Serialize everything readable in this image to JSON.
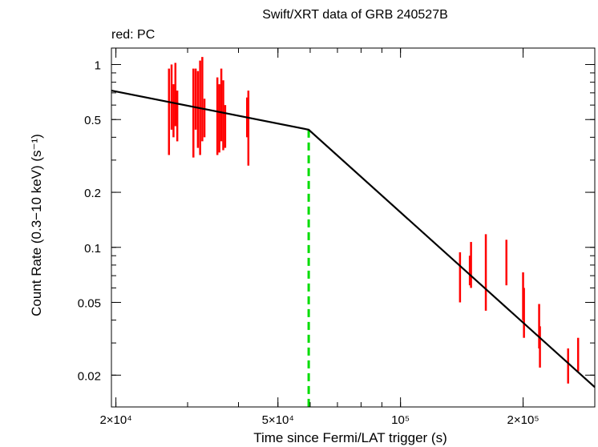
{
  "chart_data": {
    "type": "scatter",
    "title": "Swift/XRT data of GRB 240527B",
    "subtitle": "red: PC",
    "xlabel": "Time since Fermi/LAT trigger (s)",
    "ylabel": "Count Rate (0.3−10 keV) (s⁻¹)",
    "xscale": "log",
    "yscale": "log",
    "xlim": [
      19500,
      300000
    ],
    "ylim": [
      0.0134,
      1.23
    ],
    "grid": false,
    "x_ticks": [
      {
        "value": 20000,
        "label": "2×10⁴"
      },
      {
        "value": 50000,
        "label": "5×10⁴"
      },
      {
        "value": 100000,
        "label": "10⁵"
      },
      {
        "value": 200000,
        "label": "2×10⁵"
      }
    ],
    "y_ticks": [
      {
        "value": 1,
        "label": "1"
      },
      {
        "value": 0.5,
        "label": "0.5"
      },
      {
        "value": 0.2,
        "label": "0.2"
      },
      {
        "value": 0.1,
        "label": "0.1"
      },
      {
        "value": 0.05,
        "label": "0.05"
      },
      {
        "value": 0.02,
        "label": "0.02"
      }
    ],
    "series": [
      {
        "name": "PC",
        "color": "#ff0000",
        "points": [
          {
            "x": 27000,
            "y": 0.6,
            "ylo": 0.32,
            "yhi": 0.95
          },
          {
            "x": 27400,
            "y": 0.7,
            "ylo": 0.44,
            "yhi": 1.0
          },
          {
            "x": 27700,
            "y": 0.55,
            "ylo": 0.4,
            "yhi": 0.78
          },
          {
            "x": 28000,
            "y": 0.72,
            "ylo": 0.46,
            "yhi": 1.02
          },
          {
            "x": 28300,
            "y": 0.55,
            "ylo": 0.38,
            "yhi": 0.72
          },
          {
            "x": 31000,
            "y": 0.6,
            "ylo": 0.31,
            "yhi": 0.95
          },
          {
            "x": 31400,
            "y": 0.62,
            "ylo": 0.44,
            "yhi": 0.95
          },
          {
            "x": 31800,
            "y": 0.5,
            "ylo": 0.35,
            "yhi": 0.92
          },
          {
            "x": 32200,
            "y": 0.55,
            "ylo": 0.32,
            "yhi": 1.05
          },
          {
            "x": 32600,
            "y": 0.6,
            "ylo": 0.38,
            "yhi": 1.1
          },
          {
            "x": 33000,
            "y": 0.5,
            "ylo": 0.4,
            "yhi": 0.65
          },
          {
            "x": 35500,
            "y": 0.55,
            "ylo": 0.32,
            "yhi": 0.85
          },
          {
            "x": 35900,
            "y": 0.5,
            "ylo": 0.33,
            "yhi": 0.78
          },
          {
            "x": 36300,
            "y": 0.58,
            "ylo": 0.38,
            "yhi": 0.95
          },
          {
            "x": 36700,
            "y": 0.5,
            "ylo": 0.34,
            "yhi": 0.82
          },
          {
            "x": 37100,
            "y": 0.45,
            "ylo": 0.35,
            "yhi": 0.6
          },
          {
            "x": 42000,
            "y": 0.55,
            "ylo": 0.4,
            "yhi": 0.66
          },
          {
            "x": 42300,
            "y": 0.45,
            "ylo": 0.28,
            "yhi": 0.72
          },
          {
            "x": 140000,
            "y": 0.07,
            "ylo": 0.05,
            "yhi": 0.094
          },
          {
            "x": 148000,
            "y": 0.078,
            "ylo": 0.062,
            "yhi": 0.09
          },
          {
            "x": 149000,
            "y": 0.082,
            "ylo": 0.06,
            "yhi": 0.107
          },
          {
            "x": 162000,
            "y": 0.07,
            "ylo": 0.045,
            "yhi": 0.118
          },
          {
            "x": 182000,
            "y": 0.075,
            "ylo": 0.062,
            "yhi": 0.11
          },
          {
            "x": 200000,
            "y": 0.052,
            "ylo": 0.04,
            "yhi": 0.073
          },
          {
            "x": 201000,
            "y": 0.045,
            "ylo": 0.032,
            "yhi": 0.06
          },
          {
            "x": 219000,
            "y": 0.035,
            "ylo": 0.028,
            "yhi": 0.049
          },
          {
            "x": 220000,
            "y": 0.029,
            "ylo": 0.022,
            "yhi": 0.037
          },
          {
            "x": 258000,
            "y": 0.024,
            "ylo": 0.018,
            "yhi": 0.028
          },
          {
            "x": 273000,
            "y": 0.026,
            "ylo": 0.021,
            "yhi": 0.032
          }
        ]
      }
    ],
    "model": {
      "type": "broken power law",
      "color": "#000000",
      "points": [
        {
          "x": 19500,
          "y": 0.72
        },
        {
          "x": 59500,
          "y": 0.44
        },
        {
          "x": 300000,
          "y": 0.0172
        }
      ]
    },
    "break_marker": {
      "x": 59500,
      "color": "#00dd00",
      "style": "dashed"
    }
  }
}
